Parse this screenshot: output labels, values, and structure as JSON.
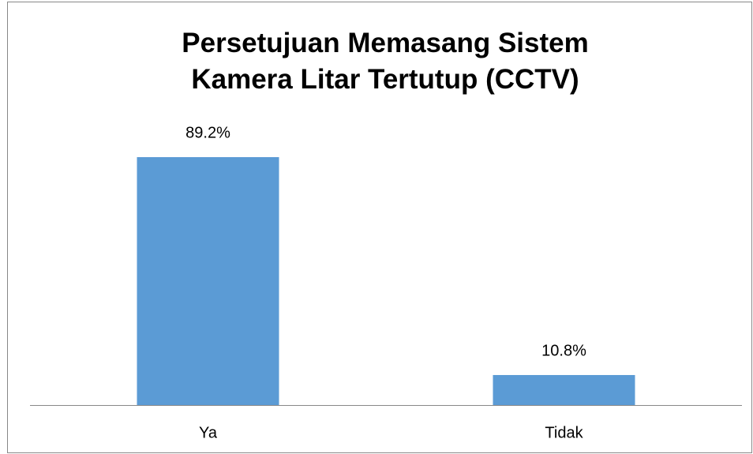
{
  "chart_data": {
    "type": "bar",
    "title": "Persetujuan Memasang Sistem\nKamera Litar Tertutup (CCTV)",
    "categories": [
      "Ya",
      "Tidak"
    ],
    "values": [
      89.2,
      10.8
    ],
    "value_labels": [
      "89.2%",
      "10.8%"
    ],
    "color": "#5b9bd5"
  }
}
